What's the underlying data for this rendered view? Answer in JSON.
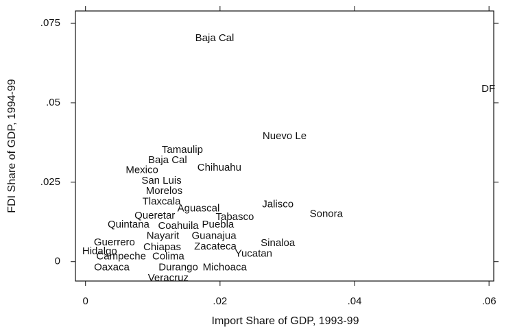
{
  "chart_data": {
    "type": "scatter",
    "x_label": "Import Share of GDP, 1993-99",
    "y_label": "FDI Share of GDP, 1994-99",
    "xlim": [
      -0.0015,
      0.0607
    ],
    "ylim": [
      -0.0061,
      0.0789
    ],
    "xticks": [
      0,
      {
        "value": 0.02,
        "label": ".02"
      },
      {
        "value": 0.04,
        "label": ".04"
      },
      {
        "value": 0.06,
        "label": ".06"
      }
    ],
    "yticks": [
      0,
      {
        "value": 0.025,
        "label": ".025"
      },
      {
        "value": 0.05,
        "label": ".05"
      },
      {
        "value": 0.075,
        "label": ".075"
      }
    ],
    "color": "#111111",
    "series": [
      {
        "labels": [
          "Baja Cal",
          "DF",
          "Nuevo Le",
          "Tamaulip",
          "Baja Cal",
          "Chihuahu",
          "Mexico",
          "San Luis",
          "Morelos",
          "Tlaxcala",
          "Jalisco",
          "Aguascal",
          "Sonora",
          "Queretar",
          "Tabasco",
          "Quintana",
          "Coahuila",
          "Puebla",
          "Nayarit",
          "Guanajua",
          "Sinaloa",
          "Guerrero",
          "Chiapas",
          "Zacateca",
          "Hidalgo",
          "Yucatan",
          "Campeche",
          "Colima",
          "Oaxaca",
          "Durango",
          "Michoaca",
          "Veracruz"
        ],
        "x": [
          0.0192,
          0.0599,
          0.0296,
          0.0144,
          0.0122,
          0.0199,
          0.0084,
          0.0113,
          0.0117,
          0.0113,
          0.0286,
          0.0168,
          0.0358,
          0.0103,
          0.0222,
          0.0064,
          0.0138,
          0.0197,
          0.0115,
          0.0191,
          0.0286,
          0.0043,
          0.0114,
          0.0193,
          0.0021,
          0.025,
          0.0053,
          0.0123,
          0.0039,
          0.0138,
          0.0207,
          0.0123
        ],
        "values": [
          0.0703,
          0.0543,
          0.0394,
          0.0351,
          0.0319,
          0.0295,
          0.0287,
          0.0254,
          0.0222,
          0.0188,
          0.0179,
          0.0166,
          0.0149,
          0.0144,
          0.014,
          0.0116,
          0.0112,
          0.0116,
          0.008,
          0.008,
          0.0058,
          0.006,
          0.0045,
          0.0047,
          0.0032,
          0.0024,
          0.0015,
          0.0015,
          -0.0019,
          -0.0019,
          -0.0019,
          -0.0052
        ]
      }
    ]
  }
}
